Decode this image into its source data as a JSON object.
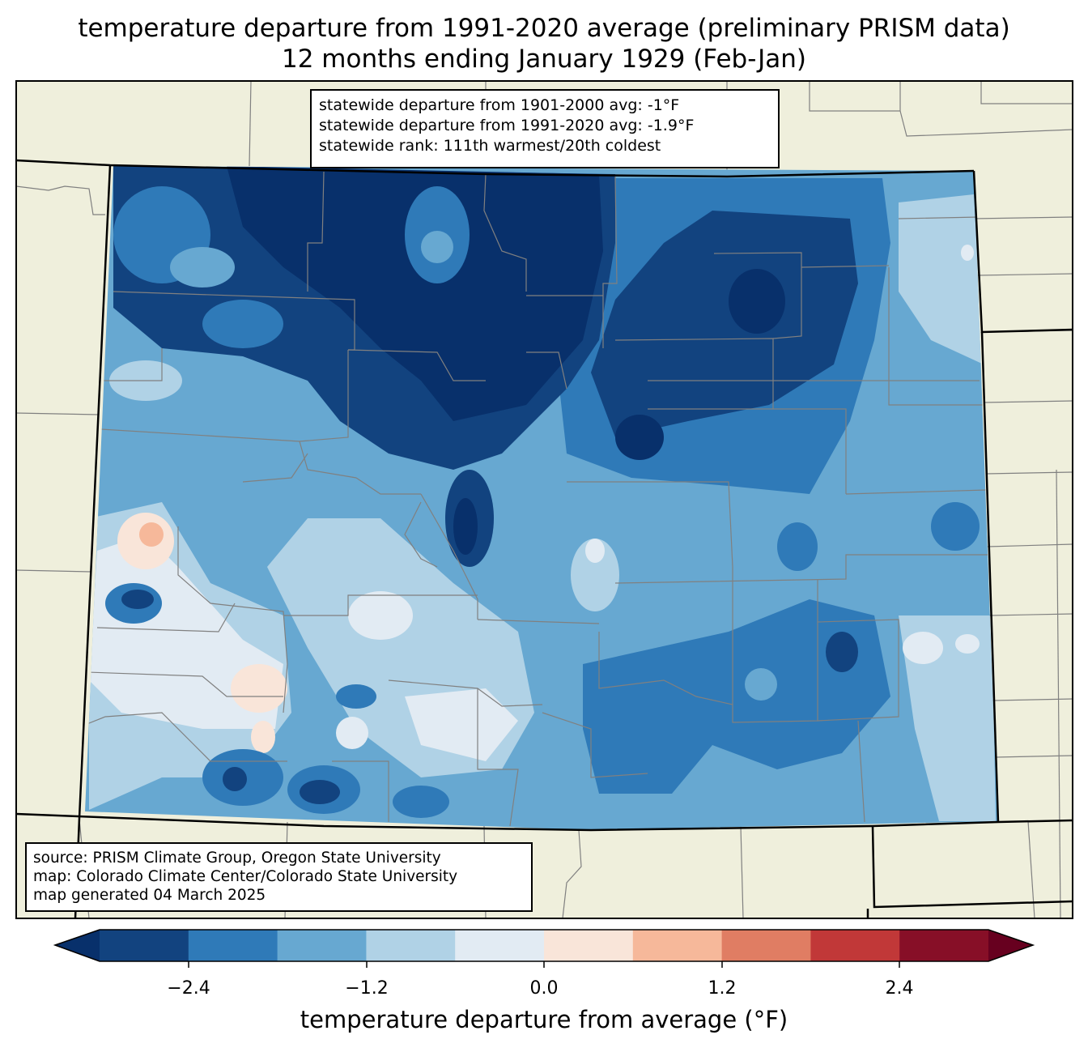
{
  "title": {
    "line1": "temperature departure from 1991-2020 average (preliminary PRISM data)",
    "line2": "12 months ending January 1929 (Feb-Jan)"
  },
  "stats": {
    "line1": "statewide departure from 1901-2000 avg: -1°F",
    "line2": "statewide departure from 1991-2020 avg: -1.9°F",
    "line3": "statewide rank: 111th warmest/20th coldest"
  },
  "source": {
    "line1": "source: PRISM Climate Group, Oregon State University",
    "line2": "map: Colorado Climate Center/Colorado State University",
    "line3": "map generated 04 March 2025"
  },
  "colorbar": {
    "label": "temperature departure from average (°F)",
    "ticks": [
      "−2.4",
      "−1.2",
      "0.0",
      "1.2",
      "2.4"
    ],
    "colors": [
      "#08306b",
      "#12437f",
      "#2f7ab8",
      "#67a8d1",
      "#b0d2e6",
      "#e2ebf3",
      "#f9e5d9",
      "#f6b89a",
      "#e07d63",
      "#c13838",
      "#870f27",
      "#67001f"
    ]
  },
  "map_colors": {
    "land": "#efefdc",
    "boundary": "#808080",
    "state_line": "#000000"
  }
}
